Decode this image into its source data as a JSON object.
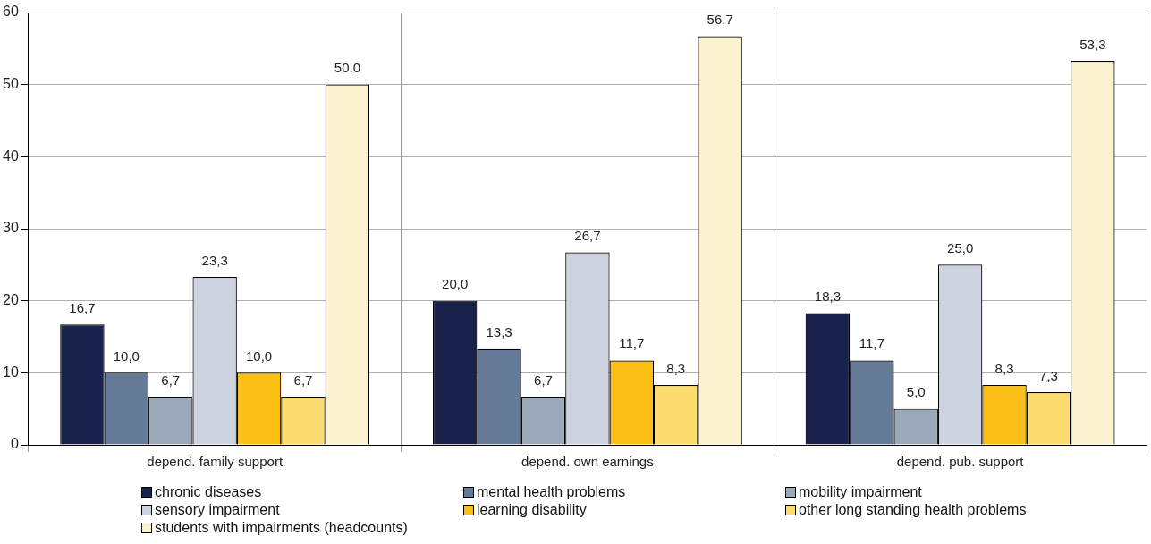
{
  "chart_data": {
    "type": "bar",
    "categories": [
      "depend. family support",
      "depend. own earnings",
      "depend. pub. support"
    ],
    "series": [
      {
        "name": "chronic diseases",
        "color": "#19224a",
        "values": [
          16.7,
          20.0,
          18.3
        ],
        "value_labels": [
          "16,7",
          "20,0",
          "18,3"
        ]
      },
      {
        "name": "mental health problems",
        "color": "#657a96",
        "values": [
          10.0,
          13.3,
          11.7
        ],
        "value_labels": [
          "10,0",
          "13,3",
          "11,7"
        ]
      },
      {
        "name": "mobility impairment",
        "color": "#9aa8b7",
        "values": [
          6.7,
          6.7,
          5.0
        ],
        "value_labels": [
          "6,7",
          "6,7",
          "5,0"
        ]
      },
      {
        "name": "sensory impairment",
        "color": "#cdd3df",
        "values": [
          23.3,
          26.7,
          25.0
        ],
        "value_labels": [
          "23,3",
          "26,7",
          "25,0"
        ]
      },
      {
        "name": "learning disability",
        "color": "#fbbf16",
        "values": [
          10.0,
          11.7,
          8.3
        ],
        "value_labels": [
          "10,0",
          "11,7",
          "8,3"
        ]
      },
      {
        "name": "other long standing health problems",
        "color": "#fcdc6e",
        "values": [
          6.7,
          8.3,
          7.3
        ],
        "value_labels": [
          "6,7",
          "8,3",
          "7,3"
        ]
      },
      {
        "name": "students with impairments (headcounts)",
        "color": "#fbf2cf",
        "values": [
          50.0,
          56.7,
          53.3
        ],
        "value_labels": [
          "50,0",
          "56,7",
          "53,3"
        ]
      }
    ],
    "ylim": [
      0,
      60
    ],
    "yticks": [
      0,
      10,
      20,
      30,
      40,
      50,
      60
    ],
    "grid": true,
    "legend": "bottom"
  }
}
